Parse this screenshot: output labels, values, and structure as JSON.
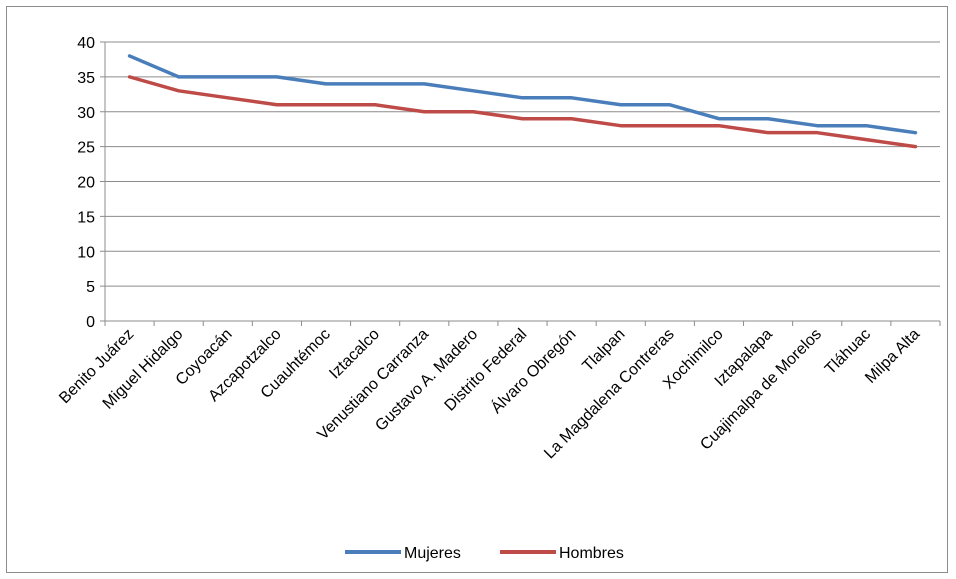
{
  "chart_data": {
    "type": "line",
    "title": "",
    "xlabel": "",
    "ylabel": "",
    "ylim": [
      0,
      40
    ],
    "yticks": [
      0,
      5,
      10,
      15,
      20,
      25,
      30,
      35,
      40
    ],
    "grid": true,
    "legend_position": "bottom",
    "categories": [
      "Benito Juárez",
      "Miguel Hidalgo",
      "Coyoacán",
      "Azcapotzalco",
      "Cuauhtémoc",
      "Iztacalco",
      "Venustiano Carranza",
      "Gustavo A. Madero",
      "Distrito Federal",
      "Álvaro Obregón",
      "Tlalpan",
      "La Magdalena Contreras",
      "Xochimilco",
      "Iztapalapa",
      "Cuajimalpa de Morelos",
      "Tláhuac",
      "Milpa Alta"
    ],
    "series": [
      {
        "name": "Mujeres",
        "color": "#4a7ebb",
        "values": [
          38,
          35,
          35,
          35,
          34,
          34,
          34,
          33,
          32,
          32,
          31,
          31,
          29,
          29,
          28,
          28,
          27
        ]
      },
      {
        "name": "Hombres",
        "color": "#be4b48",
        "values": [
          35,
          33,
          32,
          31,
          31,
          31,
          30,
          30,
          29,
          29,
          28,
          28,
          28,
          27,
          27,
          26,
          25
        ]
      }
    ]
  }
}
